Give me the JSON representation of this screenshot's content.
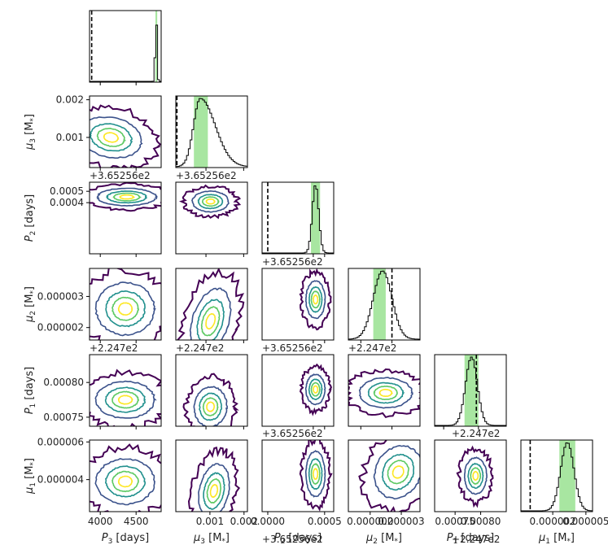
{
  "chart_data": {
    "type": "corner",
    "description_note": "",
    "parameters": [
      {
        "key": "P3",
        "label": "P_3 [days]"
      },
      {
        "key": "mu3",
        "label": "mu_3 [M_*]"
      },
      {
        "key": "P2",
        "label": "P_2 [days]"
      },
      {
        "key": "mu2",
        "label": "mu_2 [M_*]"
      },
      {
        "key": "P1",
        "label": "P_1 [days]"
      },
      {
        "key": "mu1",
        "label": "mu_1 [M_*]"
      }
    ],
    "axis_labels": {
      "P3": {
        "main": "P",
        "sub": "3",
        "unit": " [days]"
      },
      "mu3": {
        "main": "μ",
        "sub": "3",
        "unit": " [M",
        "unitSub": "*",
        "unitEnd": "]"
      },
      "P2": {
        "main": "P",
        "sub": "2",
        "unit": " [days]"
      },
      "mu2": {
        "main": "μ",
        "sub": "2",
        "unit": " [M",
        "unitSub": "*",
        "unitEnd": "]"
      },
      "P1": {
        "main": "P",
        "sub": "1",
        "unit": " [days]"
      },
      "mu1": {
        "main": "μ",
        "sub": "1",
        "unit": " [M",
        "unitSub": "*",
        "unitEnd": "]"
      }
    },
    "ranges": {
      "P3": [
        3850,
        4850
      ],
      "mu3": [
        0.0002,
        0.0021
      ],
      "P2": [
        -5e-05,
        0.00058
      ],
      "mu2": [
        1.6e-06,
        3.9e-06
      ],
      "P1": [
        0.000737,
        0.00084
      ],
      "mu1": [
        2.3e-06,
        6.1e-06
      ]
    },
    "ticks": {
      "P3": {
        "values": [
          4000,
          4500
        ],
        "labels": [
          "4000",
          "4500"
        ]
      },
      "mu3": {
        "values": [
          0.001,
          0.002
        ],
        "labels": [
          "0.001",
          "0.002"
        ]
      },
      "P2": {
        "values": [
          0.0004,
          0.0005
        ],
        "labels": [
          "0.0004",
          "0.0005"
        ]
      },
      "mu2": {
        "values": [
          2e-06,
          3e-06
        ],
        "labels": [
          "0.000002",
          "0.000003"
        ]
      },
      "P1": {
        "values": [
          0.00075,
          0.0008
        ],
        "labels": [
          "0.00075",
          "0.00080"
        ]
      },
      "mu1": {
        "values": [
          4e-06,
          6e-06
        ],
        "labels": [
          "0.000004",
          "0.000006"
        ]
      }
    },
    "bottom_tick_labels": {
      "P3": [
        "4000",
        "4500"
      ],
      "mu3": [
        "0.001",
        "0.002"
      ],
      "P2": [
        "0.0000",
        "0.0005"
      ],
      "mu2": [
        "0.000002",
        "0.000003"
      ],
      "P1": [
        "0.00075",
        "0.00080"
      ],
      "mu1": [
        "0.000002",
        "0.000005"
      ]
    },
    "bottom_tick_values": {
      "P3": [
        4000,
        4500
      ],
      "mu3": [
        0.001,
        0.002
      ],
      "P2": [
        0.0,
        0.0005
      ],
      "mu2": [
        2e-06,
        3e-06
      ],
      "P1": [
        0.00075,
        0.0008
      ],
      "mu1": [
        2.5e-06,
        5e-06
      ]
    },
    "bottom_ranges": {
      "P3": [
        3850,
        4850
      ],
      "mu3": [
        0.0,
        0.0021
      ],
      "P2": [
        -5e-05,
        0.00058
      ],
      "mu2": [
        1.3e-06,
        3.6e-06
      ],
      "P1": [
        0.00071,
        0.00085
      ],
      "mu1": [
        1e-07,
        5.5e-06
      ]
    },
    "offsets": {
      "P2": "+3.65256e2",
      "P1": "+2.247e2"
    },
    "marginals": [
      {
        "param": "P3",
        "mean": 4780,
        "sd": 12,
        "band": [
          4770,
          4795
        ],
        "truth": 3880
      },
      {
        "param": "mu3",
        "mean": 0.00085,
        "sd": 0.00018,
        "band": [
          0.00068,
          0.00105
        ],
        "truth": 0.00023
      },
      {
        "param": "P2",
        "mean": 0.00042,
        "sd": 2.8e-05,
        "band": [
          0.00038,
          0.00046
        ],
        "truth": 0.0
      },
      {
        "param": "mu2",
        "mean": 2.7e-06,
        "sd": 3e-07,
        "band": [
          2.4e-06,
          2.8e-06
        ],
        "truth": 3e-06
      },
      {
        "param": "P1",
        "mean": 0.00079,
        "sd": 8.5e-06,
        "band": [
          0.00078,
          0.0008
        ],
        "truth": 0.000797
      },
      {
        "param": "mu1",
        "mean": 3.6e-06,
        "sd": 5e-07,
        "band": [
          3e-06,
          4.2e-06
        ],
        "truth": 8e-07
      }
    ],
    "joint": [
      {
        "row": "mu3",
        "col": "P3",
        "center": [
          4150,
          0.001
        ],
        "spread": [
          180,
          0.00022
        ],
        "rot": 0.2
      },
      {
        "row": "P2",
        "col": "P3",
        "center": [
          4370,
          0.00045
        ],
        "spread": [
          170,
          3.2e-05
        ],
        "rot": 0.0
      },
      {
        "row": "P2",
        "col": "mu3",
        "center": [
          0.00112,
          0.00041
        ],
        "spread": [
          0.0002,
          3.8e-05
        ],
        "rot": 0.0
      },
      {
        "row": "mu2",
        "col": "P3",
        "center": [
          4350,
          2.6e-06
        ],
        "spread": [
          170,
          3.5e-07
        ],
        "rot": 0.0
      },
      {
        "row": "mu2",
        "col": "mu3",
        "center": [
          0.00112,
          2.2e-06
        ],
        "spread": [
          0.0002,
          4.5e-07
        ],
        "rot": 0.3
      },
      {
        "row": "mu2",
        "col": "P2",
        "center": [
          0.00042,
          2.9e-06
        ],
        "spread": [
          3.5e-05,
          2.5e-07
        ],
        "rot": 0.0
      },
      {
        "row": "P1",
        "col": "P3",
        "center": [
          4350,
          0.000775
        ],
        "spread": [
          170,
          1.1e-05
        ],
        "rot": 0.0
      },
      {
        "row": "P1",
        "col": "mu3",
        "center": [
          0.00112,
          0.000765
        ],
        "spread": [
          0.00018,
          1.2e-05
        ],
        "rot": 0.1
      },
      {
        "row": "P1",
        "col": "P2",
        "center": [
          0.00042,
          0.00079
        ],
        "spread": [
          3.5e-05,
          9e-06
        ],
        "rot": 0.0
      },
      {
        "row": "P1",
        "col": "mu2",
        "center": [
          2.8e-06,
          0.000785
        ],
        "spread": [
          3.5e-07,
          9e-06
        ],
        "rot": 0.0
      },
      {
        "row": "mu1",
        "col": "P3",
        "center": [
          4350,
          3.9e-06
        ],
        "spread": [
          170,
          5e-07
        ],
        "rot": 0.0
      },
      {
        "row": "mu1",
        "col": "mu3",
        "center": [
          0.00112,
          3.4e-06
        ],
        "spread": [
          0.00018,
          6e-07
        ],
        "rot": 0.2
      },
      {
        "row": "mu1",
        "col": "P2",
        "center": [
          0.00042,
          4.3e-06
        ],
        "spread": [
          3.5e-05,
          5e-07
        ],
        "rot": 0.0
      },
      {
        "row": "mu1",
        "col": "mu2",
        "center": [
          2.9e-06,
          4.4e-06
        ],
        "spread": [
          3e-07,
          6e-07
        ],
        "rot": 0.5
      },
      {
        "row": "mu1",
        "col": "P1",
        "center": [
          0.00079,
          4.2e-06
        ],
        "spread": [
          9e-06,
          4e-07
        ],
        "rot": 0.0
      }
    ],
    "colors": {
      "band": "#a8e6a1",
      "histogram": "#000000",
      "truth_line": "#000000",
      "contours": [
        "#440154",
        "#3b528b",
        "#21908d",
        "#5dc963",
        "#fde725"
      ]
    },
    "grid": false
  }
}
